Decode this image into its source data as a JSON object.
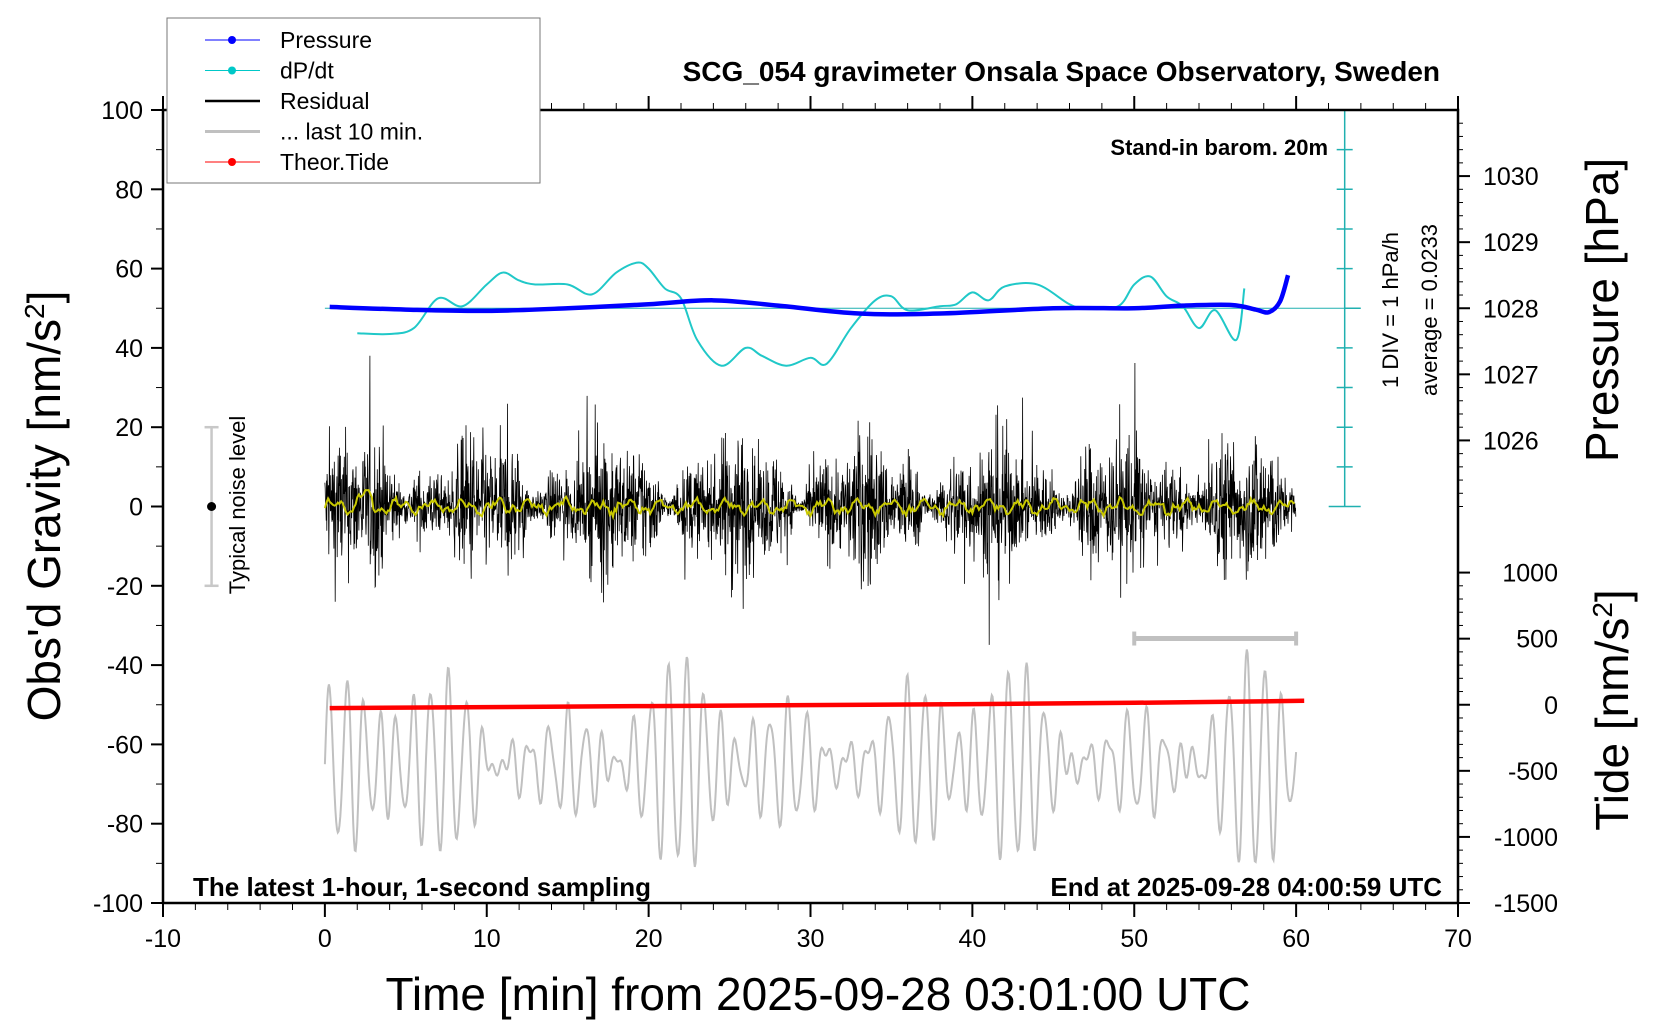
{
  "chart_data": {
    "type": "line",
    "title": "SCG_054 gravimeter Onsala Space Observatory, Sweden",
    "xlabel": "Time [min] from 2025-09-28 03:01:00 UTC",
    "ylabel": "Obs'd Gravity [nm/s",
    "ylabel_sup": "2",
    "ylabel_close": "]",
    "y2label": "Pressure [hPa]",
    "y3label": "Tide [nm/s",
    "y3label_sup": "2",
    "y3label_close": "]",
    "xlim": [
      -10,
      70
    ],
    "ylim": [
      -100,
      100
    ],
    "x_ticks": [
      -10,
      0,
      10,
      20,
      30,
      40,
      50,
      60,
      70
    ],
    "y_ticks": [
      -100,
      -80,
      -60,
      -40,
      -20,
      0,
      20,
      40,
      60,
      80,
      100
    ],
    "pressure_ticks": [
      1026,
      1027,
      1028,
      1029,
      1030
    ],
    "tide_ticks": [
      -1500,
      -1000,
      -500,
      0,
      500,
      1000
    ],
    "legend": {
      "placement": "top-left",
      "entries": [
        {
          "label": "Pressure",
          "color": "#0000ff",
          "marker": true
        },
        {
          "label": "dP/dt",
          "color": "#00c8c8",
          "marker": true
        },
        {
          "label": "Residual",
          "color": "#000000",
          "marker": false
        },
        {
          "label": "... last 10 min.",
          "color": "#c0c0c0",
          "marker": false
        },
        {
          "label": "Theor.Tide",
          "color": "#ff0000",
          "marker": true
        }
      ]
    },
    "annotations": {
      "barometer": "Stand-in barom. 20m",
      "div": "1 DIV = 1 hPa/h",
      "average": "average = 0.0233",
      "noise": "Typical noise level",
      "bottom_left": "The latest 1-hour, 1-second sampling",
      "bottom_right": "End at 2025-09-28 04:00:59 UTC"
    },
    "noise_level": {
      "t": -7,
      "range": [
        -20,
        20
      ],
      "center": 0
    },
    "scale_bar_minutes": [
      50,
      60
    ],
    "series": [
      {
        "name": "Pressure",
        "unit": "hPa",
        "color": "#0000ff",
        "points": [
          [
            0.3,
            1028.02
          ],
          [
            5,
            1027.98
          ],
          [
            10,
            1027.96
          ],
          [
            15,
            1028.0
          ],
          [
            20,
            1028.06
          ],
          [
            24,
            1028.12
          ],
          [
            28,
            1028.04
          ],
          [
            33,
            1027.92
          ],
          [
            38,
            1027.92
          ],
          [
            45,
            1028.0
          ],
          [
            50,
            1028.0
          ],
          [
            53,
            1028.04
          ],
          [
            56,
            1028.05
          ],
          [
            57.5,
            1027.98
          ],
          [
            58.3,
            1027.94
          ],
          [
            59,
            1028.1
          ],
          [
            59.5,
            1028.5
          ]
        ]
      },
      {
        "name": "dP/dt",
        "unit": "hPa/h",
        "color": "#20c8c8",
        "points": [
          [
            2,
            -0.63
          ],
          [
            4,
            -0.65
          ],
          [
            5.5,
            -0.5
          ],
          [
            7,
            0.25
          ],
          [
            8.5,
            0.05
          ],
          [
            10,
            0.6
          ],
          [
            11,
            0.9
          ],
          [
            12,
            0.7
          ],
          [
            13,
            0.6
          ],
          [
            15,
            0.6
          ],
          [
            16.5,
            0.35
          ],
          [
            18,
            0.9
          ],
          [
            19.3,
            1.15
          ],
          [
            20,
            1.0
          ],
          [
            21,
            0.5
          ],
          [
            22,
            0.25
          ],
          [
            23,
            -0.8
          ],
          [
            24.5,
            -1.45
          ],
          [
            26,
            -1.0
          ],
          [
            27,
            -1.2
          ],
          [
            28.5,
            -1.45
          ],
          [
            30,
            -1.25
          ],
          [
            31,
            -1.4
          ],
          [
            32.5,
            -0.5
          ],
          [
            34,
            0.2
          ],
          [
            35,
            0.3
          ],
          [
            36,
            -0.05
          ],
          [
            38,
            0.05
          ],
          [
            39,
            0.1
          ],
          [
            40,
            0.4
          ],
          [
            41,
            0.2
          ],
          [
            42,
            0.55
          ],
          [
            44,
            0.6
          ],
          [
            46,
            0.1
          ],
          [
            47,
            0.0
          ],
          [
            49,
            0.05
          ],
          [
            50,
            0.6
          ],
          [
            51,
            0.8
          ],
          [
            52,
            0.3
          ],
          [
            53,
            0.05
          ],
          [
            54,
            -0.5
          ],
          [
            55,
            -0.05
          ],
          [
            56.3,
            -0.8
          ],
          [
            56.8,
            0.5
          ]
        ]
      },
      {
        "name": "Residual",
        "unit": "nm/s2",
        "color": "#000000",
        "t_range": [
          0,
          60
        ],
        "typical_amplitude": 15,
        "peak_range": [
          -42,
          38
        ]
      },
      {
        "name": "Residual smoothed",
        "unit": "nm/s2",
        "color": "#c8c800",
        "t_range": [
          0,
          60
        ],
        "typical_amplitude": 1.5
      },
      {
        "name": "... last 10 min.",
        "unit": "nm/s2",
        "color": "#c0c0c0",
        "t_range": [
          0,
          60
        ],
        "center": -65,
        "peak_range": [
          -92,
          -33
        ]
      },
      {
        "name": "Theor.Tide",
        "unit": "nm/s2",
        "color": "#ff0000",
        "points": [
          [
            0.3,
            -25
          ],
          [
            20,
            -10
          ],
          [
            40,
            5
          ],
          [
            50,
            15
          ],
          [
            60.5,
            30
          ]
        ]
      }
    ]
  }
}
